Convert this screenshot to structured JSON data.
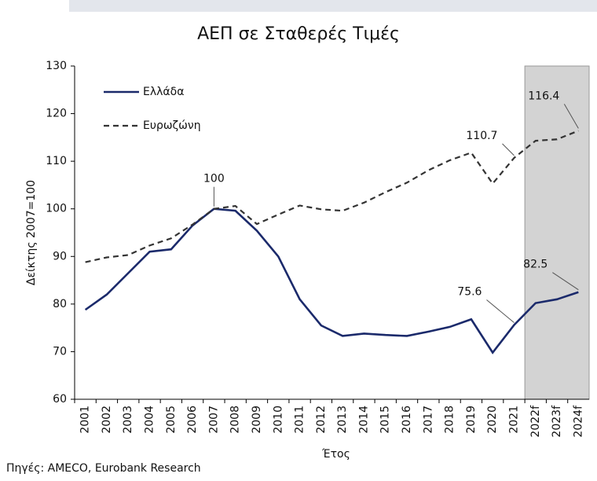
{
  "chart_data": {
    "type": "line",
    "title": "ΑΕΠ σε Σταθερές Τιμές",
    "y_label": "Δείκτης 2007=100",
    "x_label": "Έτος",
    "source": "Πηγές: AMECO, Eurobank Research",
    "categories": [
      "2001",
      "2002",
      "2003",
      "2004",
      "2005",
      "2006",
      "2007",
      "2008",
      "2009",
      "2010",
      "2011",
      "2012",
      "2013",
      "2014",
      "2015",
      "2016",
      "2017",
      "2018",
      "2019",
      "2020",
      "2021",
      "2022f",
      "2023f",
      "2024f"
    ],
    "series": [
      {
        "name": "Ελλάδα",
        "color": "#1b2a6b",
        "dash": false,
        "values": [
          78.8,
          82,
          86.5,
          91,
          91.5,
          96.5,
          100,
          99.6,
          95.4,
          90,
          81,
          75.5,
          73.3,
          73.8,
          73.5,
          73.3,
          74.2,
          75.2,
          76.8,
          69.8,
          75.6,
          80.2,
          81,
          82.5
        ]
      },
      {
        "name": "Ευρωζώνη",
        "color": "#333333",
        "dash": true,
        "values": [
          88.8,
          89.8,
          90.3,
          92.3,
          93.8,
          96.7,
          100,
          100.6,
          96.8,
          98.8,
          100.7,
          99.9,
          99.6,
          101.3,
          103.5,
          105.5,
          108.1,
          110.2,
          111.8,
          105.3,
          110.7,
          114.3,
          114.6,
          116.4
        ]
      }
    ],
    "annotations": [
      {
        "text": "100",
        "x": "2007",
        "y": 100
      },
      {
        "text": "110.7",
        "x": "2021",
        "y": 110.7
      },
      {
        "text": "116.4",
        "x": "2024f",
        "y": 116.4
      },
      {
        "text": "75.6",
        "x": "2021",
        "y": 75.6
      },
      {
        "text": "82.5",
        "x": "2024f",
        "y": 82.5
      }
    ],
    "ylim": [
      60,
      130
    ],
    "yticks": [
      60,
      70,
      80,
      90,
      100,
      110,
      120,
      130
    ],
    "legend": "upper left",
    "forecast_shading": "#d3d3d3"
  }
}
